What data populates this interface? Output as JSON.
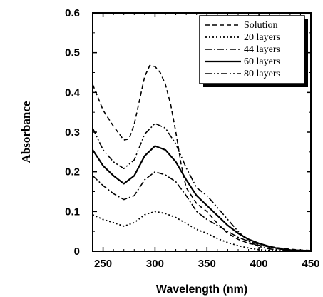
{
  "chart_data": {
    "type": "line",
    "title": "",
    "xlabel": "Wavelength (nm)",
    "ylabel": "Absorbance",
    "xlim": [
      240,
      450
    ],
    "ylim": [
      0,
      0.6
    ],
    "x_ticks": [
      "250",
      "300",
      "350",
      "400",
      "450"
    ],
    "y_ticks": [
      "0",
      "0.1",
      "0.2",
      "0.3",
      "0.4",
      "0.5",
      "0.6"
    ],
    "legend_position": "top-right",
    "series": [
      {
        "name": "Solution",
        "dash": "dashed",
        "points": [
          [
            240,
            0.42
          ],
          [
            250,
            0.355
          ],
          [
            260,
            0.315
          ],
          [
            270,
            0.28
          ],
          [
            275,
            0.283
          ],
          [
            280,
            0.32
          ],
          [
            285,
            0.38
          ],
          [
            290,
            0.44
          ],
          [
            295,
            0.468
          ],
          [
            300,
            0.465
          ],
          [
            305,
            0.45
          ],
          [
            310,
            0.42
          ],
          [
            315,
            0.37
          ],
          [
            320,
            0.3
          ],
          [
            325,
            0.22
          ],
          [
            330,
            0.16
          ],
          [
            340,
            0.12
          ],
          [
            350,
            0.1
          ],
          [
            360,
            0.07
          ],
          [
            370,
            0.045
          ],
          [
            380,
            0.03
          ],
          [
            390,
            0.02
          ],
          [
            400,
            0.015
          ],
          [
            410,
            0.012
          ],
          [
            420,
            0.008
          ],
          [
            430,
            0.005
          ],
          [
            440,
            0.003
          ],
          [
            450,
            0.002
          ]
        ]
      },
      {
        "name": "20 layers",
        "dash": "dotted",
        "points": [
          [
            240,
            0.092
          ],
          [
            250,
            0.08
          ],
          [
            260,
            0.072
          ],
          [
            270,
            0.063
          ],
          [
            280,
            0.072
          ],
          [
            290,
            0.092
          ],
          [
            300,
            0.1
          ],
          [
            310,
            0.095
          ],
          [
            320,
            0.085
          ],
          [
            330,
            0.07
          ],
          [
            340,
            0.055
          ],
          [
            350,
            0.045
          ],
          [
            360,
            0.032
          ],
          [
            370,
            0.022
          ],
          [
            380,
            0.014
          ],
          [
            390,
            0.008
          ],
          [
            400,
            0.004
          ],
          [
            410,
            0.002
          ],
          [
            420,
            0.001
          ],
          [
            450,
            0.0
          ]
        ]
      },
      {
        "name": "44 layers",
        "dash": "dashdot",
        "points": [
          [
            240,
            0.19
          ],
          [
            250,
            0.165
          ],
          [
            260,
            0.145
          ],
          [
            270,
            0.13
          ],
          [
            280,
            0.14
          ],
          [
            290,
            0.18
          ],
          [
            300,
            0.2
          ],
          [
            310,
            0.192
          ],
          [
            320,
            0.175
          ],
          [
            330,
            0.14
          ],
          [
            340,
            0.1
          ],
          [
            350,
            0.08
          ],
          [
            360,
            0.065
          ],
          [
            370,
            0.05
          ],
          [
            380,
            0.035
          ],
          [
            390,
            0.025
          ],
          [
            400,
            0.018
          ],
          [
            410,
            0.01
          ],
          [
            420,
            0.006
          ],
          [
            430,
            0.003
          ],
          [
            450,
            0.001
          ]
        ]
      },
      {
        "name": "60 layers",
        "dash": "solid",
        "points": [
          [
            240,
            0.255
          ],
          [
            250,
            0.215
          ],
          [
            260,
            0.19
          ],
          [
            270,
            0.17
          ],
          [
            280,
            0.19
          ],
          [
            290,
            0.24
          ],
          [
            300,
            0.265
          ],
          [
            310,
            0.255
          ],
          [
            320,
            0.225
          ],
          [
            330,
            0.18
          ],
          [
            340,
            0.14
          ],
          [
            350,
            0.115
          ],
          [
            360,
            0.09
          ],
          [
            370,
            0.065
          ],
          [
            380,
            0.045
          ],
          [
            390,
            0.03
          ],
          [
            400,
            0.02
          ],
          [
            410,
            0.012
          ],
          [
            420,
            0.006
          ],
          [
            430,
            0.003
          ],
          [
            450,
            0.001
          ]
        ]
      },
      {
        "name": "80 layers",
        "dash": "dashdotdot",
        "points": [
          [
            240,
            0.31
          ],
          [
            250,
            0.255
          ],
          [
            260,
            0.225
          ],
          [
            270,
            0.208
          ],
          [
            280,
            0.23
          ],
          [
            290,
            0.295
          ],
          [
            300,
            0.322
          ],
          [
            310,
            0.31
          ],
          [
            320,
            0.27
          ],
          [
            330,
            0.21
          ],
          [
            340,
            0.16
          ],
          [
            350,
            0.14
          ],
          [
            360,
            0.11
          ],
          [
            370,
            0.08
          ],
          [
            380,
            0.05
          ],
          [
            390,
            0.025
          ],
          [
            400,
            0.012
          ],
          [
            410,
            0.006
          ],
          [
            420,
            0.003
          ],
          [
            430,
            0.001
          ],
          [
            450,
            0.0
          ]
        ]
      }
    ]
  }
}
